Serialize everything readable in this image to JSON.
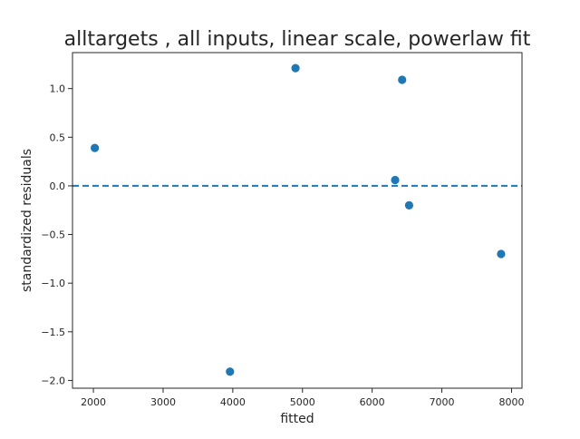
{
  "chart_data": {
    "type": "scatter",
    "title": "alltargets , all inputs, linear scale, powerlaw fit",
    "xlabel": "fitted",
    "ylabel": "standardized residuals",
    "xlim": [
      1700,
      8150
    ],
    "ylim": [
      -2.08,
      1.37
    ],
    "xticks": [
      2000,
      3000,
      4000,
      5000,
      6000,
      7000,
      8000
    ],
    "yticks": [
      -2.0,
      -1.5,
      -1.0,
      -0.5,
      0.0,
      0.5,
      1.0
    ],
    "xtick_labels": [
      "2000",
      "3000",
      "4000",
      "5000",
      "6000",
      "7000",
      "8000"
    ],
    "ytick_labels": [
      "−2.0",
      "−1.5",
      "−1.0",
      "−0.5",
      "0.0",
      "0.5",
      "1.0"
    ],
    "grid": false,
    "points": [
      {
        "x": 2020,
        "y": 0.39
      },
      {
        "x": 3960,
        "y": -1.91
      },
      {
        "x": 4900,
        "y": 1.21
      },
      {
        "x": 6330,
        "y": 0.06
      },
      {
        "x": 6430,
        "y": 1.09
      },
      {
        "x": 6530,
        "y": -0.2
      },
      {
        "x": 7850,
        "y": -0.7
      }
    ],
    "reference_line": {
      "y": 0.0,
      "style": "dashed"
    },
    "colors": {
      "points": "#1f77b4",
      "reference_line": "#1f77b4",
      "axes": "#262626",
      "text": "#262626"
    }
  }
}
